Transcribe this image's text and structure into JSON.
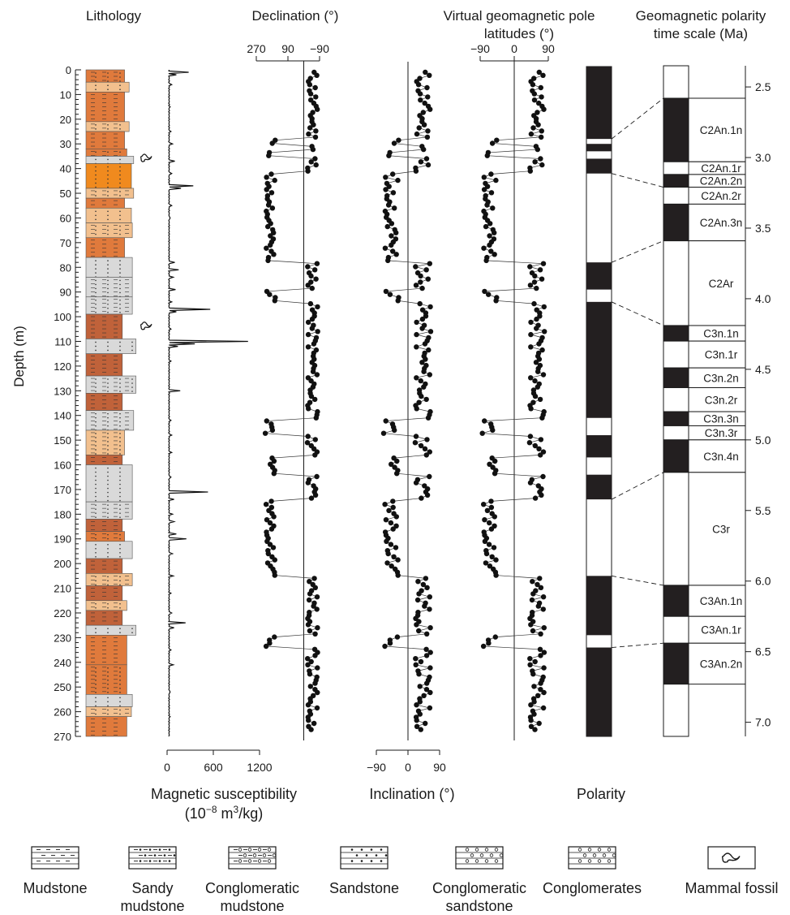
{
  "chart_data": [
    {
      "type": "table",
      "title": "Lithology",
      "ylabel": "Depth (m)",
      "ylim": [
        0,
        270
      ],
      "y_ticks": [
        0,
        10,
        20,
        30,
        40,
        50,
        60,
        70,
        80,
        90,
        100,
        110,
        120,
        130,
        140,
        150,
        160,
        170,
        180,
        190,
        200,
        210,
        220,
        230,
        240,
        250,
        260,
        270
      ],
      "fossil_depths": [
        36,
        104
      ],
      "layers": [
        {
          "top": 0,
          "bottom": 5,
          "type": "Sandy mudstone",
          "color": "#e07a3c",
          "width": 0.85
        },
        {
          "top": 5,
          "bottom": 9,
          "type": "Sandstone",
          "color": "#f2c08e",
          "width": 0.95
        },
        {
          "top": 9,
          "bottom": 21,
          "type": "Mudstone",
          "color": "#e07a3c",
          "width": 0.85
        },
        {
          "top": 21,
          "bottom": 25,
          "type": "Sandy mudstone",
          "color": "#f2c08e",
          "width": 0.95
        },
        {
          "top": 25,
          "bottom": 32,
          "type": "Mudstone",
          "color": "#e07a3c",
          "width": 0.85
        },
        {
          "top": 32,
          "bottom": 35,
          "type": "Sandy mudstone",
          "color": "#e07a3c",
          "width": 0.9
        },
        {
          "top": 35,
          "bottom": 38,
          "type": "Sandstone",
          "color": "#d9d9d9",
          "width": 1.05
        },
        {
          "top": 38,
          "bottom": 48,
          "type": "Conglomeratic sandstone",
          "color": "#f08a1e",
          "width": 1.0
        },
        {
          "top": 48,
          "bottom": 52,
          "type": "Sandy mudstone",
          "color": "#f2c08e",
          "width": 1.05
        },
        {
          "top": 52,
          "bottom": 56,
          "type": "Mudstone",
          "color": "#e07a3c",
          "width": 0.85
        },
        {
          "top": 56,
          "bottom": 62,
          "type": "Sandstone",
          "color": "#f2c08e",
          "width": 1.0
        },
        {
          "top": 62,
          "bottom": 68,
          "type": "Conglomeratic mudstone",
          "color": "#f2c08e",
          "width": 1.02
        },
        {
          "top": 68,
          "bottom": 76,
          "type": "Mudstone",
          "color": "#e07a3c",
          "width": 0.85
        },
        {
          "top": 76,
          "bottom": 84,
          "type": "Sandstone",
          "color": "#d9d9d9",
          "width": 1.02
        },
        {
          "top": 84,
          "bottom": 92,
          "type": "Sandy mudstone",
          "color": "#d9d9d9",
          "width": 1.02
        },
        {
          "top": 92,
          "bottom": 99,
          "type": "Conglomeratic mudstone",
          "color": "#d9d9d9",
          "width": 1.02
        },
        {
          "top": 99,
          "bottom": 109,
          "type": "Mudstone",
          "color": "#c0623a",
          "width": 0.8
        },
        {
          "top": 109,
          "bottom": 115,
          "type": "Conglomeratic sandstone",
          "color": "#d9d9d9",
          "width": 1.1
        },
        {
          "top": 115,
          "bottom": 124,
          "type": "Mudstone",
          "color": "#c0623a",
          "width": 0.8
        },
        {
          "top": 124,
          "bottom": 131,
          "type": "Sandy mudstone",
          "color": "#d9d9d9",
          "width": 1.1
        },
        {
          "top": 131,
          "bottom": 138,
          "type": "Mudstone",
          "color": "#c0623a",
          "width": 0.8
        },
        {
          "top": 138,
          "bottom": 146,
          "type": "Sandy mudstone",
          "color": "#d9d9d9",
          "width": 1.05
        },
        {
          "top": 146,
          "bottom": 156,
          "type": "Sandy mudstone",
          "color": "#f2c08e",
          "width": 0.85
        },
        {
          "top": 156,
          "bottom": 160,
          "type": "Mudstone",
          "color": "#c0623a",
          "width": 0.8
        },
        {
          "top": 160,
          "bottom": 175,
          "type": "Sandstone",
          "color": "#d9d9d9",
          "width": 1.02
        },
        {
          "top": 175,
          "bottom": 182,
          "type": "Sandy mudstone",
          "color": "#d9d9d9",
          "width": 1.02
        },
        {
          "top": 182,
          "bottom": 187,
          "type": "Mudstone",
          "color": "#c0623a",
          "width": 0.8
        },
        {
          "top": 187,
          "bottom": 191,
          "type": "Sandy mudstone",
          "color": "#e07a3c",
          "width": 0.85
        },
        {
          "top": 191,
          "bottom": 198,
          "type": "Sandstone",
          "color": "#d9d9d9",
          "width": 1.02
        },
        {
          "top": 198,
          "bottom": 204,
          "type": "Mudstone",
          "color": "#c0623a",
          "width": 0.8
        },
        {
          "top": 204,
          "bottom": 209,
          "type": "Sandy mudstone",
          "color": "#f2c08e",
          "width": 1.02
        },
        {
          "top": 209,
          "bottom": 215,
          "type": "Mudstone",
          "color": "#c0623a",
          "width": 0.8
        },
        {
          "top": 215,
          "bottom": 219,
          "type": "Sandy mudstone",
          "color": "#f2c08e",
          "width": 0.9
        },
        {
          "top": 219,
          "bottom": 225,
          "type": "Mudstone",
          "color": "#c0623a",
          "width": 0.8
        },
        {
          "top": 225,
          "bottom": 229,
          "type": "Sandstone",
          "color": "#d9d9d9",
          "width": 1.1
        },
        {
          "top": 229,
          "bottom": 241,
          "type": "Mudstone",
          "color": "#e07a3c",
          "width": 0.9
        },
        {
          "top": 241,
          "bottom": 253,
          "type": "Sandy mudstone",
          "color": "#e07a3c",
          "width": 0.9
        },
        {
          "top": 253,
          "bottom": 258,
          "type": "Sandstone",
          "color": "#d9d9d9",
          "width": 1.02
        },
        {
          "top": 258,
          "bottom": 262,
          "type": "Sandy mudstone",
          "color": "#f2c08e",
          "width": 1.0
        },
        {
          "top": 262,
          "bottom": 270,
          "type": "Mudstone",
          "color": "#e07a3c",
          "width": 0.9
        }
      ]
    },
    {
      "type": "line",
      "title": "Magnetic susceptibility",
      "subtitle": "(10",
      "units_exp": "−8",
      "units_mid": " m",
      "units_exp2": "3",
      "units_end": "/kg)",
      "xlim": [
        0,
        1200
      ],
      "x_ticks": [
        "0",
        "600",
        "1200"
      ],
      "baseline": 20,
      "spikes": [
        {
          "depth": 1,
          "value": 280
        },
        {
          "depth": 2,
          "value": 120
        },
        {
          "depth": 6,
          "value": 60
        },
        {
          "depth": 15,
          "value": 40
        },
        {
          "depth": 25,
          "value": 50
        },
        {
          "depth": 30,
          "value": 70
        },
        {
          "depth": 37,
          "value": 100
        },
        {
          "depth": 42,
          "value": 60
        },
        {
          "depth": 47,
          "value": 340
        },
        {
          "depth": 48,
          "value": 180
        },
        {
          "depth": 55,
          "value": 60
        },
        {
          "depth": 60,
          "value": 40
        },
        {
          "depth": 78,
          "value": 100
        },
        {
          "depth": 81,
          "value": 150
        },
        {
          "depth": 84,
          "value": 80
        },
        {
          "depth": 89,
          "value": 110
        },
        {
          "depth": 94,
          "value": 60
        },
        {
          "depth": 97,
          "value": 560
        },
        {
          "depth": 98,
          "value": 120
        },
        {
          "depth": 105,
          "value": 50
        },
        {
          "depth": 110,
          "value": 1050
        },
        {
          "depth": 111,
          "value": 360
        },
        {
          "depth": 112,
          "value": 140
        },
        {
          "depth": 118,
          "value": 50
        },
        {
          "depth": 130,
          "value": 170
        },
        {
          "depth": 142,
          "value": 50
        },
        {
          "depth": 148,
          "value": 60
        },
        {
          "depth": 155,
          "value": 60
        },
        {
          "depth": 165,
          "value": 50
        },
        {
          "depth": 171,
          "value": 530
        },
        {
          "depth": 174,
          "value": 90
        },
        {
          "depth": 180,
          "value": 70
        },
        {
          "depth": 183,
          "value": 90
        },
        {
          "depth": 188,
          "value": 120
        },
        {
          "depth": 190,
          "value": 250
        },
        {
          "depth": 196,
          "value": 70
        },
        {
          "depth": 205,
          "value": 80
        },
        {
          "depth": 212,
          "value": 50
        },
        {
          "depth": 220,
          "value": 60
        },
        {
          "depth": 224,
          "value": 240
        },
        {
          "depth": 226,
          "value": 90
        },
        {
          "depth": 235,
          "value": 50
        },
        {
          "depth": 241,
          "value": 80
        },
        {
          "depth": 252,
          "value": 40
        },
        {
          "depth": 262,
          "value": 40
        }
      ]
    },
    {
      "type": "scatter",
      "title": "Declination (°)",
      "x_ticks": [
        "270",
        "90",
        "−90"
      ],
      "xlim": [
        270,
        -90
      ],
      "reference_line": 0
    },
    {
      "type": "scatter",
      "title": "",
      "xlabel": "Inclination (°)",
      "x_ticks": [
        "−90",
        "0",
        "90"
      ],
      "xlim": [
        -90,
        90
      ],
      "reference_line": 0
    },
    {
      "type": "scatter",
      "title": "Virtual geomagnetic pole latitudes (°)",
      "title_line1": "Virtual geomagnetic pole",
      "title_line2": "latitudes (°)",
      "x_ticks": [
        "−90",
        "0",
        "90"
      ],
      "xlim": [
        -90,
        90
      ],
      "reference_line": 0
    },
    {
      "type": "table",
      "title": "Polarity",
      "ylim": [
        0,
        270
      ],
      "normal_intervals": [
        [
          0,
          28
        ],
        [
          30,
          33
        ],
        [
          36,
          42
        ],
        [
          78,
          89
        ],
        [
          94,
          141
        ],
        [
          148,
          157
        ],
        [
          164,
          174
        ],
        [
          205,
          229
        ],
        [
          234,
          270
        ]
      ]
    },
    {
      "type": "table",
      "title": "Geomagnetic polarity time scale (Ma)",
      "title_line1": "Geomagnetic polarity",
      "title_line2": "time scale (Ma)",
      "ylim": [
        2.35,
        7.1
      ],
      "y_ticks": [
        "2.5",
        "3.0",
        "3.5",
        "4.0",
        "4.5",
        "5.0",
        "5.5",
        "6.0",
        "6.5",
        "7.0"
      ],
      "chrons": [
        {
          "name": "",
          "top": 2.35,
          "bottom": 2.58,
          "polarity": "r"
        },
        {
          "name": "C2An.1n",
          "top": 2.58,
          "bottom": 3.03,
          "polarity": "n"
        },
        {
          "name": "C2An.1r",
          "top": 3.03,
          "bottom": 3.12,
          "polarity": "r"
        },
        {
          "name": "C2An.2n",
          "top": 3.12,
          "bottom": 3.21,
          "polarity": "n"
        },
        {
          "name": "C2An.2r",
          "top": 3.21,
          "bottom": 3.33,
          "polarity": "r"
        },
        {
          "name": "C2An.3n",
          "top": 3.33,
          "bottom": 3.59,
          "polarity": "n"
        },
        {
          "name": "C2Ar",
          "top": 3.59,
          "bottom": 4.19,
          "polarity": "r"
        },
        {
          "name": "C3n.1n",
          "top": 4.19,
          "bottom": 4.3,
          "polarity": "n"
        },
        {
          "name": "C3n.1r",
          "top": 4.3,
          "bottom": 4.49,
          "polarity": "r"
        },
        {
          "name": "C3n.2n",
          "top": 4.49,
          "bottom": 4.63,
          "polarity": "n"
        },
        {
          "name": "C3n.2r",
          "top": 4.63,
          "bottom": 4.8,
          "polarity": "r"
        },
        {
          "name": "C3n.3n",
          "top": 4.8,
          "bottom": 4.9,
          "polarity": "n"
        },
        {
          "name": "C3n.3r",
          "top": 4.9,
          "bottom": 5.0,
          "polarity": "r"
        },
        {
          "name": "C3n.4n",
          "top": 5.0,
          "bottom": 5.23,
          "polarity": "n"
        },
        {
          "name": "C3r",
          "top": 5.23,
          "bottom": 6.03,
          "polarity": "r"
        },
        {
          "name": "C3An.1n",
          "top": 6.03,
          "bottom": 6.25,
          "polarity": "n"
        },
        {
          "name": "C3An.1r",
          "top": 6.25,
          "bottom": 6.44,
          "polarity": "r"
        },
        {
          "name": "C3An.2n",
          "top": 6.44,
          "bottom": 6.73,
          "polarity": "n"
        },
        {
          "name": "",
          "top": 6.73,
          "bottom": 7.1,
          "polarity": "r"
        }
      ],
      "correlation_lines": [
        {
          "depth": 28,
          "age": 2.58
        },
        {
          "depth": 42,
          "age": 3.21
        },
        {
          "depth": 78,
          "age": 3.59
        },
        {
          "depth": 94,
          "age": 4.19
        },
        {
          "depth": 174,
          "age": 5.23
        },
        {
          "depth": 205,
          "age": 6.03
        },
        {
          "depth": 234,
          "age": 6.44
        }
      ]
    }
  ],
  "legend": [
    {
      "label": "Mudstone",
      "pattern": "mudstone"
    },
    {
      "label": "Sandy\nmudstone",
      "pattern": "sandy-mudstone"
    },
    {
      "label": "Conglomeratic\nmudstone",
      "pattern": "conglomeratic-mudstone"
    },
    {
      "label": "Sandstone",
      "pattern": "sandstone"
    },
    {
      "label": "Conglomeratic\nsandstone",
      "pattern": "conglomeratic-sandstone"
    },
    {
      "label": "Conglomerates",
      "pattern": "conglomerates"
    },
    {
      "label": "Mammal fossil",
      "pattern": "mammal-fossil"
    }
  ]
}
